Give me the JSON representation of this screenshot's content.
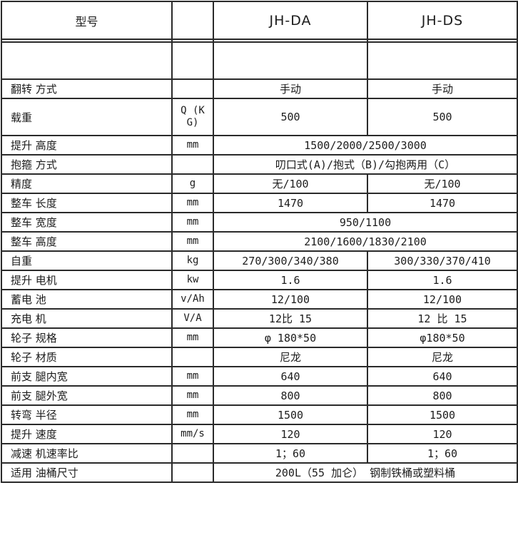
{
  "header": {
    "model_label": "型号",
    "unit_header": "",
    "columns": [
      "JH-DA",
      "JH-DS"
    ]
  },
  "rows": [
    {
      "kind": "spacer",
      "label": "",
      "unit": "",
      "cells": [
        "",
        ""
      ]
    },
    {
      "kind": "blank",
      "label": "",
      "unit": "",
      "cells": [
        "",
        ""
      ]
    },
    {
      "label": "翻转 方式",
      "unit": "",
      "cells": [
        "手动",
        "手动"
      ]
    },
    {
      "kind": "tall",
      "label": "载重",
      "unit": "Q (KG)",
      "cells": [
        "500",
        "500"
      ]
    },
    {
      "label": "提升 高度",
      "unit": "mm",
      "span": true,
      "cells": [
        "1500/2000/2500/3000"
      ]
    },
    {
      "label": "抱箍 方式",
      "unit": "",
      "span": true,
      "cells": [
        "叨口式(A)/抱式（B)/勾抱两用（C）"
      ]
    },
    {
      "label": "精度",
      "unit": "g",
      "cells": [
        "无/100",
        "无/100"
      ]
    },
    {
      "label": "整车 长度",
      "unit": "mm",
      "cells": [
        "1470",
        "1470"
      ]
    },
    {
      "label": "整车 宽度",
      "unit": "mm",
      "span": true,
      "cells": [
        "950/1100"
      ]
    },
    {
      "label": "整车 高度",
      "unit": "mm",
      "span": true,
      "cells": [
        "2100/1600/1830/2100"
      ]
    },
    {
      "label": "自重",
      "unit": "kg",
      "cells": [
        "270/300/340/380",
        "300/330/370/410"
      ]
    },
    {
      "label": "提升 电机",
      "unit": "kw",
      "cells": [
        "1.6",
        "1.6"
      ]
    },
    {
      "label": "蓄电 池",
      "unit": "v/Ah",
      "cells": [
        "12/100",
        "12/100"
      ]
    },
    {
      "label": "充电 机",
      "unit": "V/A",
      "cells": [
        "12比 15",
        "12 比 15"
      ]
    },
    {
      "label": "轮子 规格",
      "unit": "mm",
      "cells": [
        "φ 180*50",
        "φ180*50"
      ]
    },
    {
      "label": "轮子 材质",
      "unit": "",
      "cells": [
        "尼龙",
        "尼龙"
      ]
    },
    {
      "label": "前支 腿内宽",
      "unit": "mm",
      "cells": [
        "640",
        "640"
      ]
    },
    {
      "label": "前支 腿外宽",
      "unit": "mm",
      "cells": [
        "800",
        "800"
      ]
    },
    {
      "label": "转弯 半径",
      "unit": "mm",
      "cells": [
        "1500",
        "1500"
      ]
    },
    {
      "label": "提升 速度",
      "unit": "mm/s",
      "cells": [
        "120",
        "120"
      ]
    },
    {
      "label": "减速 机速率比",
      "unit": "",
      "cells": [
        "1；60",
        "1；60"
      ]
    },
    {
      "label": "适用 油桶尺寸",
      "unit": "",
      "span": true,
      "cells": [
        "200L（55 加仑） 钢制铁桶或塑料桶"
      ]
    }
  ],
  "colors": {
    "border": "#2a2a2a",
    "text": "#1c1c1c",
    "background": "#ffffff"
  }
}
